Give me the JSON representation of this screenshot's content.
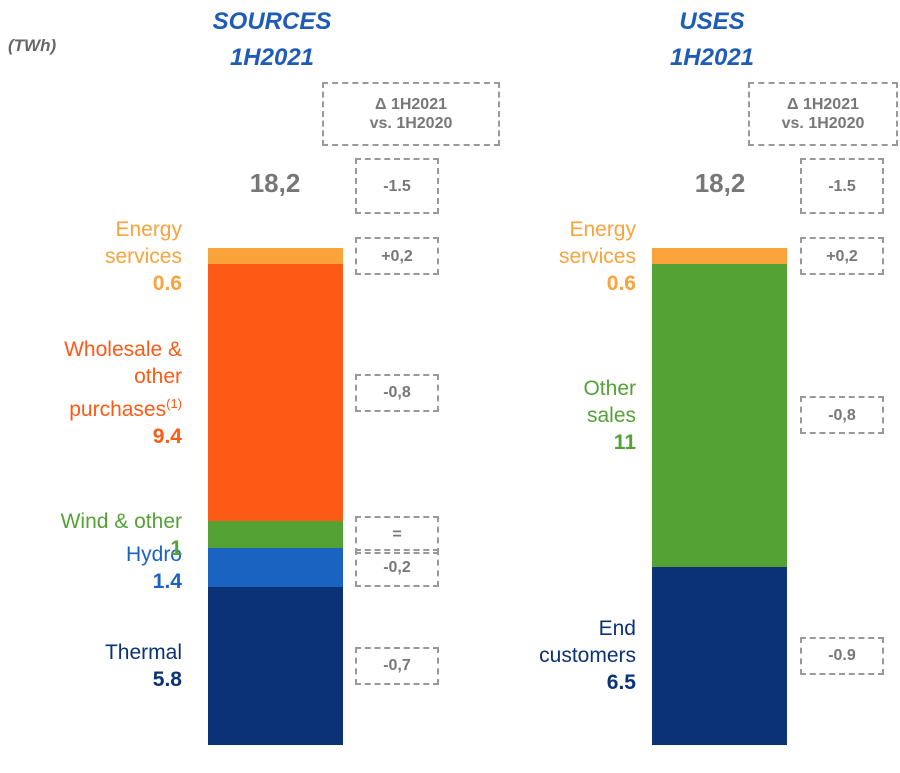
{
  "unit_label": "(TWh)",
  "chart_data": [
    {
      "type": "stacked-bar",
      "title": "SOURCES",
      "subtitle": "1H2021",
      "delta_header": [
        "Δ 1H2021",
        "vs. 1H2020"
      ],
      "total": 18.2,
      "total_label": "18,2",
      "total_delta": "-1.5",
      "series": [
        {
          "name": [
            "Thermal"
          ],
          "color": "#0b3275",
          "values": [
            5.8
          ],
          "delta": "-0,7"
        },
        {
          "name": [
            "Hydro"
          ],
          "color": "#1a63c0",
          "values": [
            1.4
          ],
          "delta": "-0,2"
        },
        {
          "name": [
            "Wind & other"
          ],
          "color": "#54a234",
          "values": [
            1.0
          ],
          "delta": "="
        },
        {
          "name": [
            "Wholesale &",
            "other",
            "purchases"
          ],
          "note": "(1)",
          "color": "#fd5a15",
          "values": [
            9.4
          ],
          "delta": "-0,8"
        },
        {
          "name": [
            "Energy",
            "services"
          ],
          "color": "#f9a33a",
          "values": [
            0.6
          ],
          "delta": "+0,2"
        }
      ]
    },
    {
      "type": "stacked-bar",
      "title": "USES",
      "subtitle": "1H2021",
      "delta_header": [
        "Δ 1H2021",
        "vs. 1H2020"
      ],
      "total": 18.2,
      "total_label": "18,2",
      "total_delta": "-1.5",
      "series": [
        {
          "name": [
            "End",
            "customers"
          ],
          "color": "#0b3275",
          "values": [
            6.5
          ],
          "delta": "-0.9"
        },
        {
          "name": [
            "Other",
            "sales"
          ],
          "color": "#54a234",
          "values": [
            11.0
          ],
          "delta": "-0,8"
        },
        {
          "name": [
            "Energy",
            "services"
          ],
          "color": "#f9a33a",
          "values": [
            0.6
          ],
          "delta": "+0,2"
        }
      ]
    }
  ]
}
